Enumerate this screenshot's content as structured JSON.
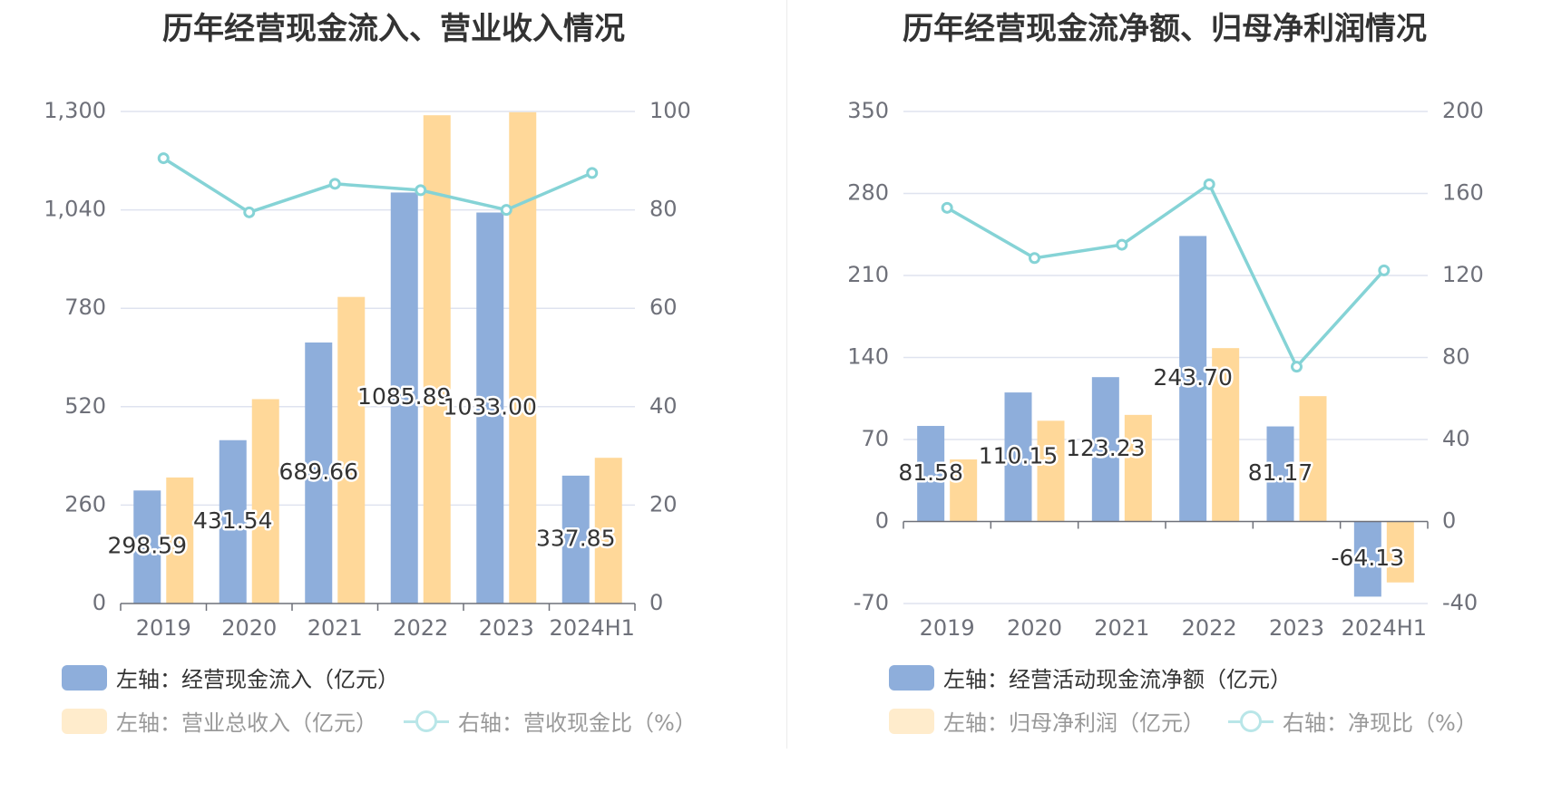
{
  "colors": {
    "bar_primary": "#8eaedb",
    "bar_secondary": "#ffd899",
    "line": "#85d3d6",
    "grid": "#dfe3ef",
    "axis": "#6e7079",
    "legend_text_active": "#333333",
    "legend_text_inactive": "#999999"
  },
  "left_chart": {
    "title": "历年经营现金流入、营业收入情况",
    "legend": {
      "bar1": "左轴：经营现金流入（亿元）",
      "bar2": "左轴：营业总收入（亿元）",
      "line": "右轴：营收现金比（%）"
    }
  },
  "right_chart": {
    "title": "历年经营现金流净额、归母净利润情况",
    "legend": {
      "bar1": "左轴：经营活动现金流净额（亿元）",
      "bar2": "左轴：归母净利润（亿元）",
      "line": "右轴：净现比（%）"
    }
  },
  "chart_data": [
    {
      "type": "bar",
      "title": "历年经营现金流入、营业收入情况",
      "categories": [
        "2019",
        "2020",
        "2021",
        "2022",
        "2023",
        "2024H1"
      ],
      "ylim_left": [
        0,
        1300
      ],
      "yticks_left": [
        "0",
        "260",
        "520",
        "780",
        "1,040",
        "1,300"
      ],
      "ylim_right": [
        0,
        100
      ],
      "yticks_right": [
        "0",
        "20",
        "40",
        "60",
        "80",
        "100"
      ],
      "series": [
        {
          "name": "左轴：经营现金流入（亿元）",
          "type": "bar",
          "axis": "left",
          "values": [
            298.59,
            431.54,
            689.66,
            1085.89,
            1033.0,
            337.85
          ],
          "labels": [
            "298.59",
            "431.54",
            "689.66",
            "1085.89",
            "1033.00",
            "337.85"
          ]
        },
        {
          "name": "左轴：营业总收入（亿元）",
          "type": "bar",
          "axis": "left",
          "values": [
            333,
            540,
            810,
            1290,
            1298,
            385
          ]
        },
        {
          "name": "右轴：营收现金比（%）",
          "type": "line",
          "axis": "right",
          "values": [
            90.5,
            79.5,
            85.3,
            84.0,
            80.0,
            87.5
          ]
        }
      ]
    },
    {
      "type": "bar",
      "title": "历年经营现金流净额、归母净利润情况",
      "categories": [
        "2019",
        "2020",
        "2021",
        "2022",
        "2023",
        "2024H1"
      ],
      "ylim_left": [
        -70,
        350
      ],
      "yticks_left": [
        "-70",
        "0",
        "70",
        "140",
        "210",
        "280",
        "350"
      ],
      "ylim_right": [
        -40,
        200
      ],
      "yticks_right": [
        "-40",
        "0",
        "40",
        "80",
        "120",
        "160",
        "200"
      ],
      "series": [
        {
          "name": "左轴：经营活动现金流净额（亿元）",
          "type": "bar",
          "axis": "left",
          "values": [
            81.58,
            110.15,
            123.23,
            243.7,
            81.17,
            -64.13
          ],
          "labels": [
            "81.58",
            "110.15",
            "123.23",
            "243.70",
            "81.17",
            "-64.13"
          ]
        },
        {
          "name": "左轴：归母净利润（亿元）",
          "type": "bar",
          "axis": "left",
          "values": [
            53,
            86,
            91,
            148,
            107,
            -52
          ]
        },
        {
          "name": "右轴：净现比（%）",
          "type": "line",
          "axis": "right",
          "values": [
            153.0,
            128.5,
            135.0,
            164.5,
            75.5,
            122.5
          ]
        }
      ]
    }
  ]
}
